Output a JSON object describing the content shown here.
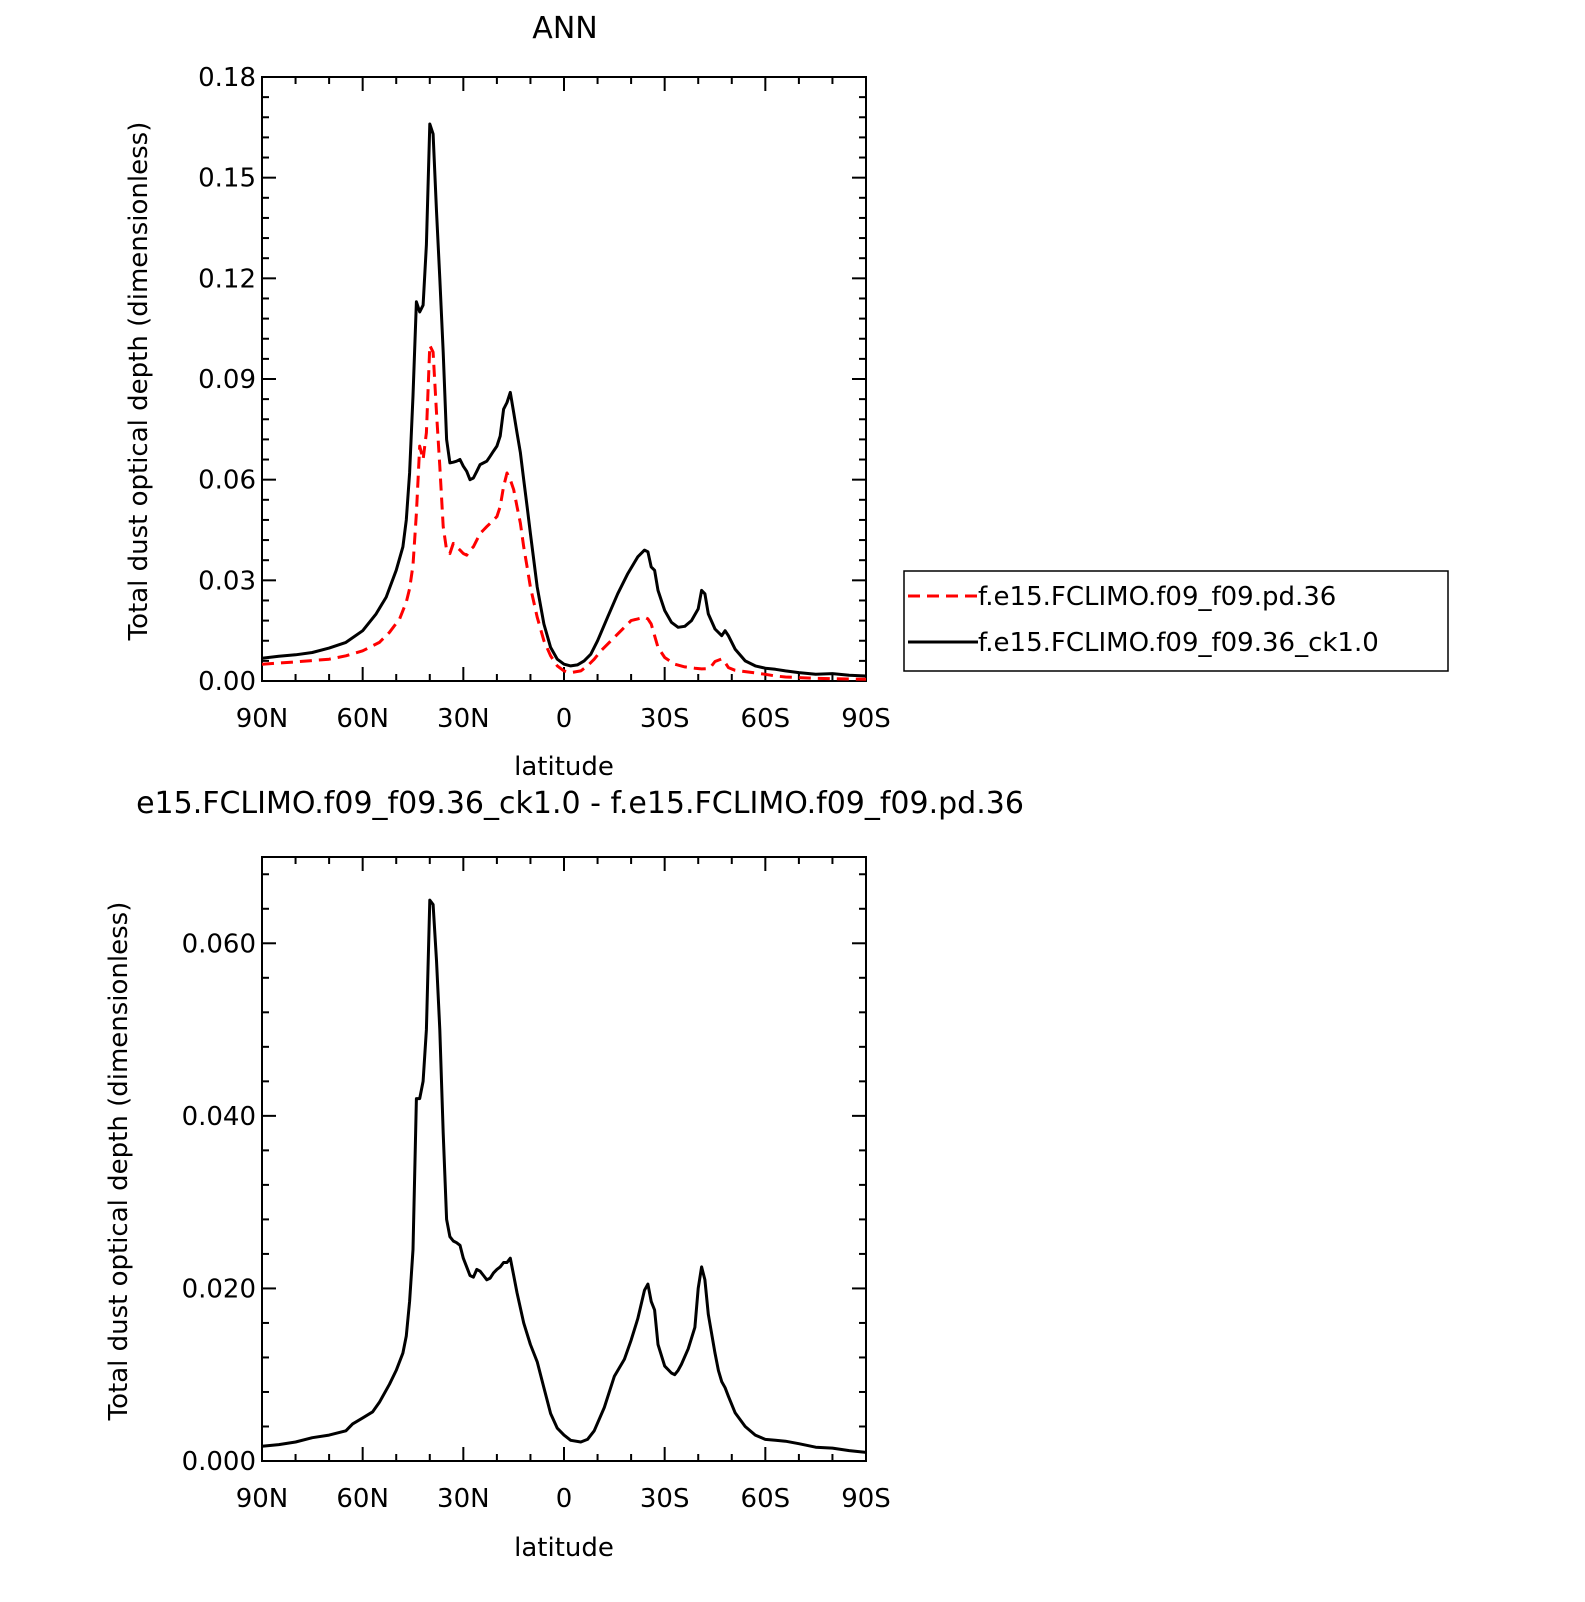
{
  "chart_data": [
    {
      "type": "line",
      "title": "ANN",
      "xlabel": "latitude",
      "ylabel": "Total dust optical depth (dimensionless)",
      "xlim": [
        90,
        -90
      ],
      "ylim": [
        0,
        0.18
      ],
      "xticks": [
        90,
        60,
        30,
        0,
        -30,
        -60,
        -90
      ],
      "xtick_labels": [
        "90N",
        "60N",
        "30N",
        "0",
        "30S",
        "60S",
        "90S"
      ],
      "yticks": [
        0,
        0.03,
        0.06,
        0.09,
        0.12,
        0.15,
        0.18
      ],
      "ytick_labels": [
        "0.00",
        "0.03",
        "0.06",
        "0.09",
        "0.12",
        "0.15",
        "0.18"
      ],
      "grid": false,
      "legend_position": "right",
      "series": [
        {
          "name": "f.e15.FCLIMO.f09_f09.pd.36",
          "color": "#ff0000",
          "style": "dashed",
          "x": [
            90,
            80,
            70,
            65,
            60,
            55,
            52,
            49,
            47,
            46,
            45,
            44,
            43,
            42,
            41,
            40,
            39,
            38,
            37,
            36,
            35,
            34,
            33,
            32,
            31,
            30,
            29,
            28,
            27,
            26,
            25,
            24,
            23,
            22,
            21,
            20,
            19,
            18,
            17,
            16,
            15,
            14,
            13,
            12,
            11,
            10,
            8,
            6,
            4,
            2,
            0,
            -2,
            -5,
            -7,
            -9,
            -11,
            -14,
            -17,
            -20,
            -22,
            -24,
            -25,
            -26,
            -27,
            -28,
            -30,
            -33,
            -36,
            -39,
            -41,
            -43,
            -44,
            -45,
            -47,
            -48,
            -49,
            -51,
            -54,
            -57,
            -60,
            -63,
            -66,
            -70,
            -75,
            -80,
            -85,
            -90
          ],
          "y": [
            0.005,
            0.0057,
            0.0065,
            0.0075,
            0.009,
            0.0115,
            0.0145,
            0.0185,
            0.0235,
            0.0275,
            0.0345,
            0.05,
            0.07,
            0.066,
            0.074,
            0.1,
            0.098,
            0.08,
            0.064,
            0.046,
            0.039,
            0.038,
            0.041,
            0.04,
            0.039,
            0.038,
            0.0375,
            0.039,
            0.04,
            0.042,
            0.044,
            0.045,
            0.046,
            0.047,
            0.048,
            0.049,
            0.052,
            0.058,
            0.062,
            0.06,
            0.057,
            0.052,
            0.047,
            0.04,
            0.034,
            0.028,
            0.019,
            0.012,
            0.0075,
            0.0045,
            0.003,
            0.0025,
            0.003,
            0.0045,
            0.0065,
            0.009,
            0.012,
            0.015,
            0.018,
            0.0185,
            0.019,
            0.0185,
            0.017,
            0.0135,
            0.01,
            0.007,
            0.005,
            0.0042,
            0.0038,
            0.0036,
            0.0037,
            0.0045,
            0.0058,
            0.0066,
            0.0055,
            0.004,
            0.0032,
            0.0028,
            0.0024,
            0.002,
            0.0015,
            0.0012,
            0.001,
            0.0008,
            0.0007,
            0.0006,
            0.0005
          ]
        },
        {
          "name": "f.e15.FCLIMO.f09_f09.36_ck1.0",
          "color": "#000000",
          "style": "solid",
          "x": [
            90,
            85,
            80,
            75,
            70,
            65,
            60,
            56,
            53,
            50,
            48,
            47,
            46,
            45,
            44,
            43,
            42,
            41,
            40,
            39,
            38,
            37,
            36,
            35,
            34,
            33,
            32,
            31,
            30,
            29,
            28,
            27,
            26,
            25,
            24,
            23,
            22,
            21,
            20,
            19,
            18,
            17,
            16,
            15,
            14,
            13,
            12,
            11,
            10,
            8,
            6,
            4,
            2,
            0,
            -2,
            -4,
            -6,
            -8,
            -10,
            -13,
            -16,
            -19,
            -22,
            -24,
            -25,
            -26,
            -27,
            -28,
            -30,
            -32,
            -34,
            -36,
            -38,
            -40,
            -41,
            -42,
            -43,
            -45,
            -47,
            -48,
            -49,
            -51,
            -54,
            -57,
            -60,
            -63,
            -66,
            -70,
            -75,
            -80,
            -85,
            -90
          ],
          "y": [
            0.0068,
            0.0074,
            0.0078,
            0.0085,
            0.0098,
            0.0115,
            0.015,
            0.02,
            0.025,
            0.033,
            0.04,
            0.048,
            0.062,
            0.085,
            0.113,
            0.11,
            0.112,
            0.13,
            0.166,
            0.163,
            0.14,
            0.12,
            0.098,
            0.072,
            0.065,
            0.0652,
            0.0655,
            0.066,
            0.064,
            0.0625,
            0.06,
            0.0605,
            0.0625,
            0.0645,
            0.065,
            0.0655,
            0.067,
            0.0685,
            0.07,
            0.073,
            0.081,
            0.083,
            0.086,
            0.08,
            0.074,
            0.068,
            0.06,
            0.052,
            0.044,
            0.028,
            0.017,
            0.01,
            0.0065,
            0.005,
            0.0045,
            0.0048,
            0.006,
            0.008,
            0.012,
            0.019,
            0.026,
            0.032,
            0.037,
            0.039,
            0.0385,
            0.034,
            0.033,
            0.027,
            0.021,
            0.0175,
            0.016,
            0.0163,
            0.018,
            0.0215,
            0.027,
            0.026,
            0.02,
            0.0155,
            0.0135,
            0.015,
            0.0135,
            0.0095,
            0.006,
            0.0045,
            0.0038,
            0.0035,
            0.003,
            0.0025,
            0.002,
            0.0022,
            0.0017,
            0.0015
          ]
        }
      ]
    },
    {
      "type": "line",
      "title": "e15.FCLIMO.f09_f09.36_ck1.0 - f.e15.FCLIMO.f09_f09.pd.36",
      "xlabel": "latitude",
      "ylabel": "Total dust optical depth (dimensionless)",
      "xlim": [
        90,
        -90
      ],
      "ylim": [
        0,
        0.07
      ],
      "xticks": [
        90,
        60,
        30,
        0,
        -30,
        -60,
        -90
      ],
      "xtick_labels": [
        "90N",
        "60N",
        "30N",
        "0",
        "30S",
        "60S",
        "90S"
      ],
      "yticks": [
        0,
        0.02,
        0.04,
        0.06
      ],
      "ytick_labels": [
        "0.000",
        "0.020",
        "0.040",
        "0.060"
      ],
      "grid": false,
      "series": [
        {
          "name": "",
          "color": "#000000",
          "style": "solid",
          "x": [
            90,
            85,
            80,
            75,
            70,
            65,
            63,
            60,
            57,
            55,
            52,
            50,
            48,
            47,
            46,
            45,
            44,
            43,
            42,
            41,
            40,
            39,
            38,
            37,
            36,
            35,
            34,
            33,
            32,
            31,
            30,
            29,
            28,
            27,
            26,
            25,
            24,
            23,
            22,
            21,
            20,
            19,
            18,
            17,
            16,
            15,
            14,
            12,
            10,
            8,
            6,
            4,
            2,
            0,
            -2,
            -5,
            -7,
            -9,
            -12,
            -15,
            -18,
            -20,
            -22,
            -24,
            -25,
            -26,
            -27,
            -28,
            -30,
            -32,
            -33,
            -34,
            -35,
            -37,
            -39,
            -40,
            -41,
            -42,
            -43,
            -45,
            -46,
            -47,
            -48,
            -49,
            -51,
            -54,
            -57,
            -60,
            -63,
            -66,
            -70,
            -75,
            -80,
            -85,
            -90
          ],
          "y": [
            0.0017,
            0.0019,
            0.0022,
            0.0027,
            0.003,
            0.0035,
            0.0043,
            0.005,
            0.0057,
            0.0068,
            0.0089,
            0.0105,
            0.0125,
            0.0145,
            0.0185,
            0.0245,
            0.042,
            0.042,
            0.044,
            0.05,
            0.065,
            0.0645,
            0.058,
            0.05,
            0.038,
            0.028,
            0.026,
            0.0255,
            0.0253,
            0.025,
            0.0235,
            0.0225,
            0.0215,
            0.0213,
            0.0222,
            0.022,
            0.0215,
            0.021,
            0.0212,
            0.0218,
            0.0222,
            0.0225,
            0.023,
            0.023,
            0.0235,
            0.0215,
            0.0195,
            0.016,
            0.0135,
            0.0115,
            0.0085,
            0.0055,
            0.0038,
            0.003,
            0.0024,
            0.0022,
            0.0025,
            0.0035,
            0.0062,
            0.0098,
            0.0118,
            0.014,
            0.0165,
            0.0198,
            0.0205,
            0.0185,
            0.0175,
            0.0135,
            0.011,
            0.0102,
            0.01,
            0.0105,
            0.0112,
            0.013,
            0.0155,
            0.02,
            0.0225,
            0.021,
            0.017,
            0.0125,
            0.0105,
            0.0092,
            0.0085,
            0.0075,
            0.0056,
            0.004,
            0.003,
            0.0025,
            0.0024,
            0.0023,
            0.002,
            0.0016,
            0.0015,
            0.0012,
            0.001
          ]
        }
      ]
    }
  ]
}
